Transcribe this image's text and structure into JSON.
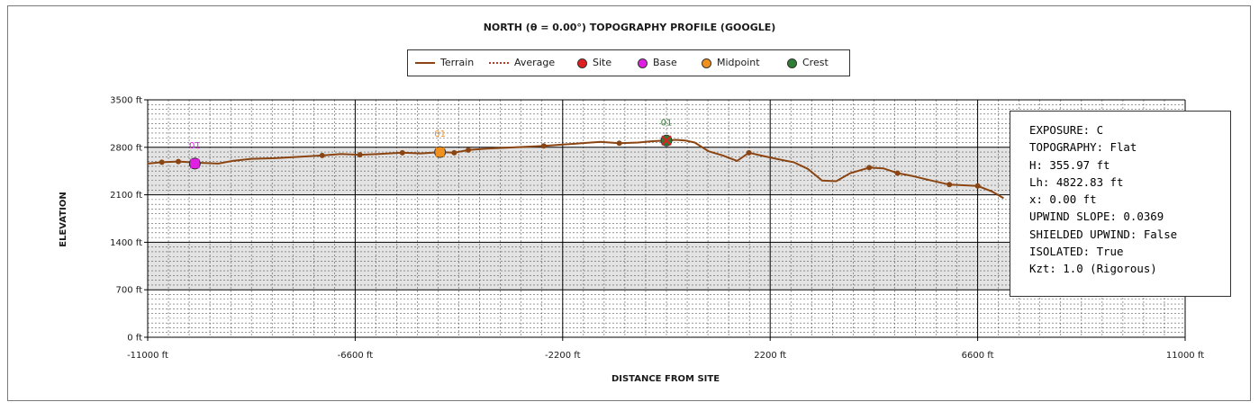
{
  "chart_data": {
    "type": "line",
    "title": "NORTH (θ = 0.00°) TOPOGRAPHY PROFILE (GOOGLE)",
    "xlabel": "DISTANCE FROM SITE",
    "ylabel": "ELEVATION",
    "xlim": [
      -11000,
      11000
    ],
    "ylim": [
      0,
      3500
    ],
    "x_ticks": [
      "-11000 ft",
      "-6600 ft",
      "-2200 ft",
      "2200 ft",
      "6600 ft",
      "11000 ft"
    ],
    "y_ticks": [
      "0 ft",
      "700 ft",
      "1400 ft",
      "2100 ft",
      "2800 ft",
      "3500 ft"
    ],
    "legend": [
      "Terrain",
      "Average",
      "Site",
      "Base",
      "Midpoint",
      "Crest"
    ],
    "legend_placement": "top-center",
    "grid": true,
    "colors": {
      "terrain": "#8b4513",
      "average": "#c0392b",
      "site": "#e02020",
      "base": "#e020e0",
      "midpoint": "#f0901e",
      "crest": "#2e7d32"
    },
    "series": [
      {
        "name": "Terrain",
        "x": [
          -11000,
          -10700,
          -10350,
          -10100,
          -9850,
          -9500,
          -9200,
          -8800,
          -8300,
          -7800,
          -7300,
          -6900,
          -6500,
          -6100,
          -5600,
          -5200,
          -4800,
          -4500,
          -4200,
          -3800,
          -3200,
          -2600,
          -2200,
          -1800,
          -1400,
          -1000,
          -600,
          -300,
          0,
          200,
          400,
          600,
          900,
          1200,
          1300,
          1500,
          1750,
          2000,
          2400,
          2700,
          3000,
          3300,
          3600,
          3900,
          4300,
          4600,
          4900,
          5200,
          5500,
          6000,
          6300,
          6600,
          6900,
          7150
        ],
        "y": [
          2560,
          2580,
          2590,
          2580,
          2570,
          2560,
          2600,
          2630,
          2640,
          2660,
          2680,
          2700,
          2690,
          2700,
          2720,
          2710,
          2730,
          2720,
          2760,
          2780,
          2800,
          2820,
          2840,
          2860,
          2880,
          2860,
          2870,
          2890,
          2900,
          2910,
          2900,
          2870,
          2740,
          2680,
          2650,
          2600,
          2720,
          2680,
          2620,
          2580,
          2480,
          2310,
          2300,
          2420,
          2500,
          2490,
          2420,
          2380,
          2330,
          2250,
          2240,
          2230,
          2150,
          2050
        ]
      }
    ],
    "markers": {
      "base": {
        "x": -10000,
        "y": 2560,
        "label": "01"
      },
      "midpoint": {
        "x": -4800,
        "y": 2730,
        "label": "01"
      },
      "crest": {
        "x": 0,
        "y": 2900,
        "label": "01"
      }
    }
  },
  "info": {
    "lines": [
      "EXPOSURE: C",
      "TOPOGRAPHY: Flat",
      "H: 355.97 ft",
      "Lh: 4822.83 ft",
      "x: 0.00 ft",
      "UPWIND SLOPE: 0.0369",
      "SHIELDED UPWIND: False",
      "ISOLATED: True",
      "Kzt: 1.0 (Rigorous)"
    ]
  }
}
